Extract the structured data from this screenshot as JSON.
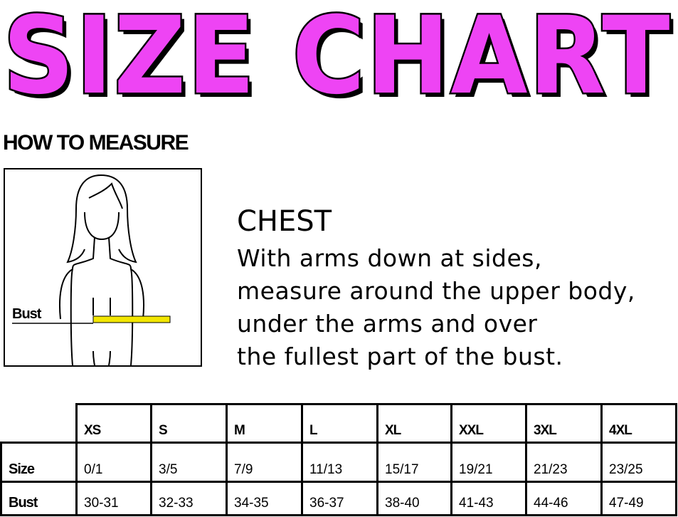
{
  "title": "SIZE CHART",
  "how_to_measure": "HOW TO MEASURE",
  "figure": {
    "label": "Bust",
    "tape_color": "#f2e600"
  },
  "chest": {
    "heading": "CHEST",
    "lines": [
      "With arms down at sides,",
      "measure around the upper body,",
      "under the arms and over",
      "the fullest part of the bust."
    ]
  },
  "colors": {
    "title": "#ee44f4"
  },
  "table": {
    "columns": [
      "XS",
      "S",
      "M",
      "L",
      "XL",
      "XXL",
      "3XL",
      "4XL"
    ],
    "rows": [
      {
        "label": "Size",
        "values": [
          "0/1",
          "3/5",
          "7/9",
          "11/13",
          "15/17",
          "19/21",
          "21/23",
          "23/25"
        ]
      },
      {
        "label": "Bust",
        "values": [
          "30-31",
          "32-33",
          "34-35",
          "36-37",
          "38-40",
          "41-43",
          "44-46",
          "47-49"
        ]
      }
    ]
  }
}
